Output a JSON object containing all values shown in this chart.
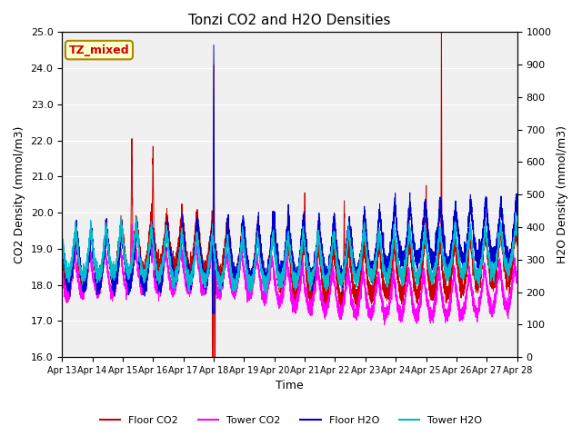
{
  "title": "Tonzi CO2 and H2O Densities",
  "xlabel": "Time",
  "ylabel_left": "CO2 Density (mmol/m3)",
  "ylabel_right": "H2O Density (mmol/m3)",
  "ylim_left": [
    16.0,
    25.0
  ],
  "ylim_right": [
    0,
    1000
  ],
  "annotation_text": "TZ_mixed",
  "annotation_bg": "#ffffcc",
  "annotation_border": "#aa8800",
  "colors": {
    "floor_co2": "#cc0000",
    "tower_co2": "#ff00ff",
    "floor_h2o": "#0000cc",
    "tower_h2o": "#00bbcc"
  },
  "legend_labels": [
    "Floor CO2",
    "Tower CO2",
    "Floor H2O",
    "Tower H2O"
  ],
  "x_tick_labels": [
    "Apr 13",
    "Apr 14",
    "Apr 15",
    "Apr 16",
    "Apr 17",
    "Apr 18",
    "Apr 19",
    "Apr 20",
    "Apr 21",
    "Apr 22",
    "Apr 23",
    "Apr 24",
    "Apr 25",
    "Apr 26",
    "Apr 27",
    "Apr 28"
  ],
  "yticks_left": [
    16.0,
    17.0,
    18.0,
    19.0,
    20.0,
    21.0,
    22.0,
    23.0,
    24.0,
    25.0
  ],
  "yticks_right": [
    0,
    100,
    200,
    300,
    400,
    500,
    600,
    700,
    800,
    900,
    1000
  ],
  "bg_color": "#f0f0f0",
  "grid_color": "#ffffff",
  "n_points": 7200
}
